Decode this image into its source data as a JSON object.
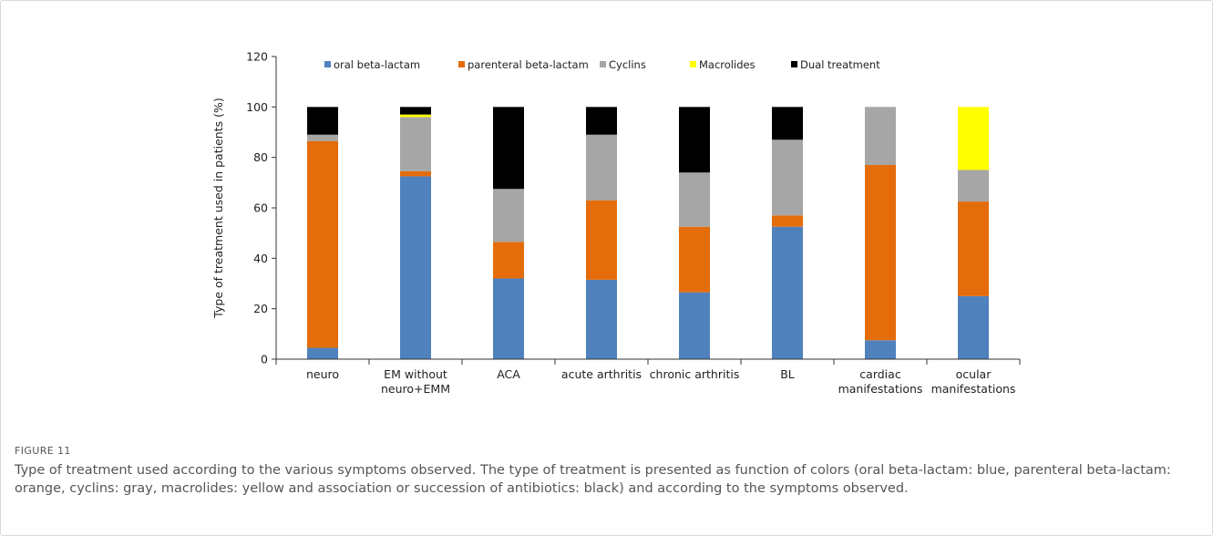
{
  "figure": {
    "label": "FIGURE 11",
    "caption": "Type of treatment used according to the various symptoms observed. The type of treatment is presented as function of colors (oral beta-lactam: blue, parenteral beta-lactam: orange, cyclins: gray, macrolides: yellow and association or succession of antibiotics: black) and according to the symptoms observed."
  },
  "chart_data": {
    "type": "bar",
    "stacked": true,
    "title": "",
    "xlabel": "",
    "ylabel": "Type of treatment used in patients (%)",
    "ylim": [
      0,
      120
    ],
    "yticks": [
      0,
      20,
      40,
      60,
      80,
      100,
      120
    ],
    "grid": false,
    "legend_position": "top",
    "categories": [
      [
        "neuro"
      ],
      [
        "EM without",
        "neuro+EMM"
      ],
      [
        "ACA"
      ],
      [
        "acute arthritis"
      ],
      [
        "chronic arthritis"
      ],
      [
        "BL"
      ],
      [
        "cardiac",
        "manifestations"
      ],
      [
        "ocular",
        "manifestations"
      ]
    ],
    "series": [
      {
        "name": "oral beta-lactam",
        "color": "#4f81bd",
        "values": [
          4.5,
          72.5,
          32,
          31.5,
          26.5,
          52.5,
          7.5,
          25
        ]
      },
      {
        "name": "parenteral beta-lactam",
        "color": "#e46c0a",
        "values": [
          82,
          2,
          14.5,
          31.5,
          26,
          4.5,
          69.5,
          37.5
        ]
      },
      {
        "name": "Cyclins",
        "color": "#a6a6a6",
        "values": [
          2.5,
          21.5,
          21,
          26,
          21.5,
          30,
          23,
          12.5
        ]
      },
      {
        "name": "Macrolides",
        "color": "#ffff00",
        "values": [
          0,
          1,
          0,
          0,
          0,
          0,
          0,
          25
        ]
      },
      {
        "name": "Dual treatment",
        "color": "#000000",
        "values": [
          11,
          3,
          32.5,
          11,
          26,
          13,
          0,
          0
        ]
      }
    ]
  }
}
